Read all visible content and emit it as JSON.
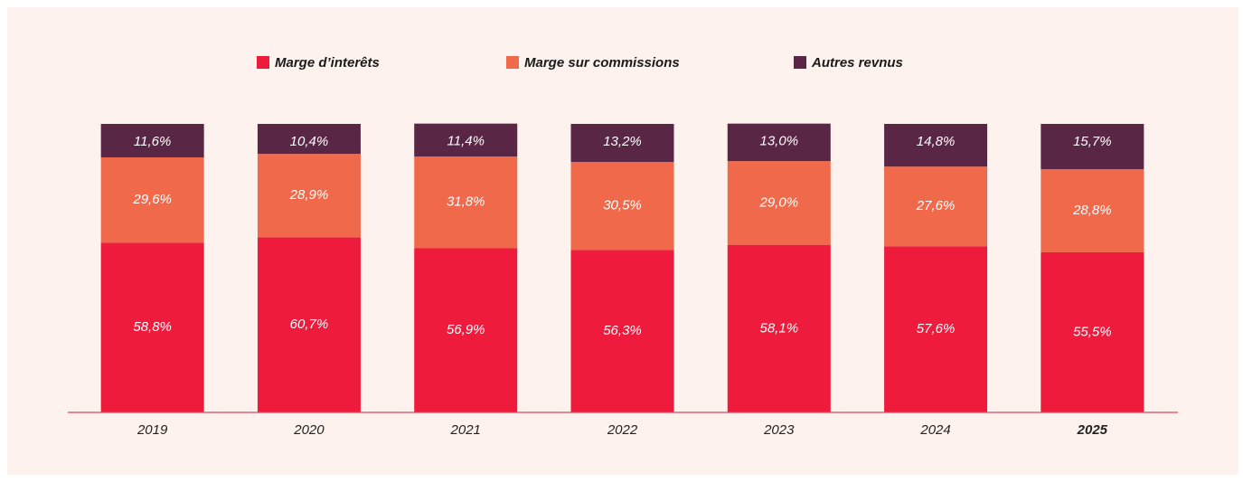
{
  "chart_data": {
    "type": "stacked_bar",
    "categories": [
      "2019",
      "2020",
      "2021",
      "2022",
      "2023",
      "2024",
      "2025"
    ],
    "series": [
      {
        "name": "Marge d’interêts",
        "color": "#ee1b3d",
        "values": [
          58.8,
          60.7,
          56.9,
          56.3,
          58.1,
          57.6,
          55.5
        ],
        "value_labels": [
          "58,8%",
          "60,7%",
          "56,9%",
          "56,3%",
          "58,1%",
          "57,6%",
          "55,5%"
        ]
      },
      {
        "name": "Marge sur commissions",
        "color": "#f0694b",
        "values": [
          29.6,
          28.9,
          31.8,
          30.5,
          29.0,
          27.6,
          28.8
        ],
        "value_labels": [
          "29,6%",
          "28,9%",
          "31,8%",
          "30,5%",
          "29,0%",
          "27,6%",
          "28,8%"
        ]
      },
      {
        "name": "Autres revnus",
        "color": "#5a2645",
        "values": [
          11.6,
          10.4,
          11.4,
          13.2,
          13.0,
          14.8,
          15.7
        ],
        "value_labels": [
          "11,6%",
          "10,4%",
          "11,4%",
          "13,2%",
          "13,0%",
          "14,8%",
          "15,7%"
        ]
      }
    ],
    "ylim": [
      0,
      100
    ]
  }
}
